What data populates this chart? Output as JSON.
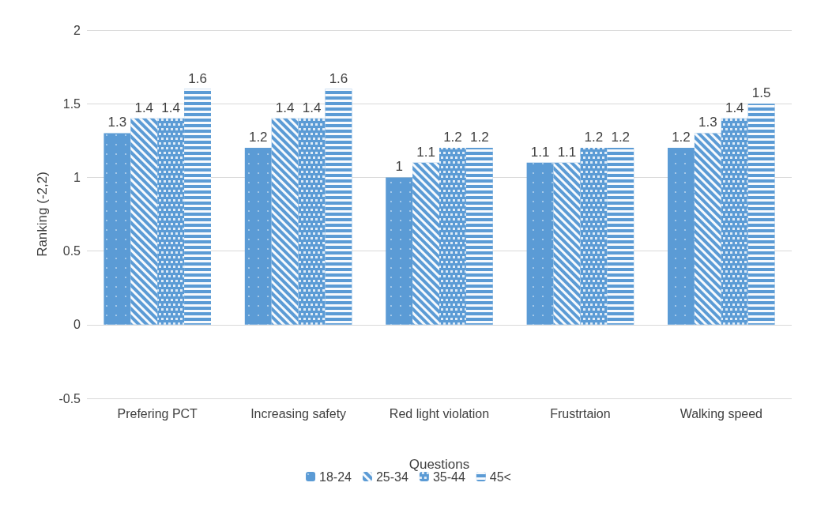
{
  "chart_data": {
    "type": "bar",
    "xlabel": "Questions",
    "ylabel": "Ranking (-2,2)",
    "categories": [
      "Prefering PCT",
      "Increasing safety",
      "Red light violation",
      "Frustrtaion",
      "Walking speed"
    ],
    "series": [
      {
        "name": "18-24",
        "color": "#5b9bd5",
        "values": [
          1.3,
          1.2,
          1,
          1.1,
          1.2
        ]
      },
      {
        "name": "25-34",
        "color": "#5b9bd5",
        "values": [
          1.4,
          1.4,
          1.1,
          1.1,
          1.3
        ]
      },
      {
        "name": "35-44",
        "color": "#5b9bd5",
        "values": [
          1.4,
          1.4,
          1.2,
          1.2,
          1.4
        ]
      },
      {
        "name": "45<",
        "color": "#5b9bd5",
        "values": [
          1.6,
          1.6,
          1.2,
          1.2,
          1.5
        ]
      }
    ],
    "ylim": [
      -0.5,
      2
    ],
    "yticks": [
      -0.5,
      0,
      0.5,
      1,
      1.5,
      2
    ],
    "grid": "y",
    "legend": "bottom",
    "data_labels": true
  }
}
